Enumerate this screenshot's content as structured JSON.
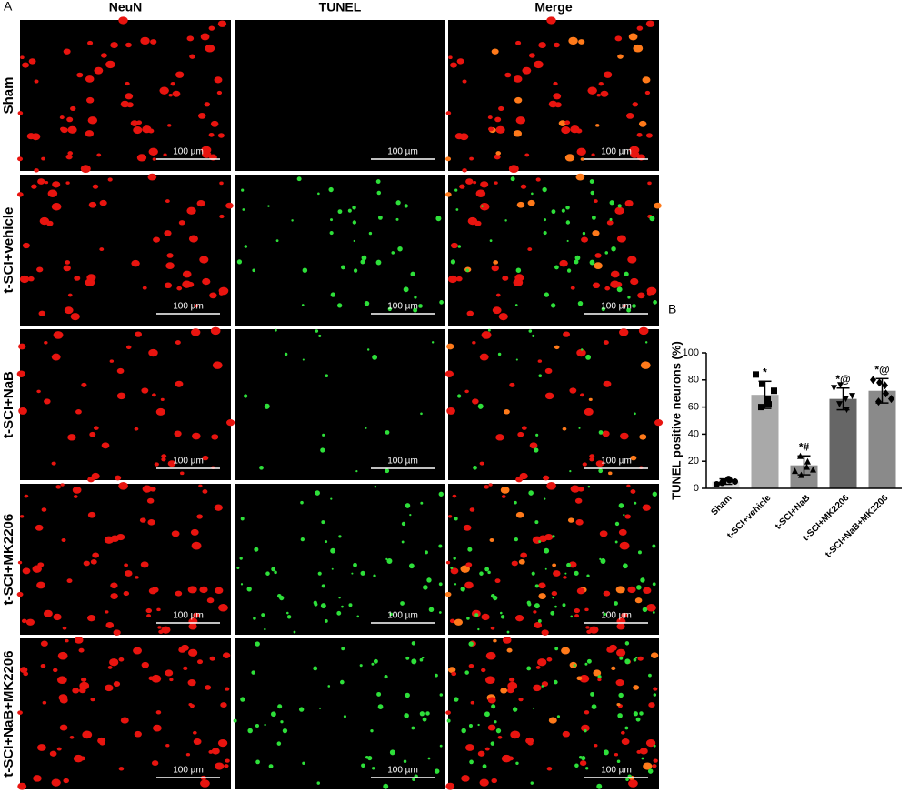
{
  "panel_a": {
    "label": "A",
    "columns": [
      "NeuN",
      "TUNEL",
      "Merge"
    ],
    "rows": [
      "Sham",
      "t-SCI+vehicle",
      "t-SCI+NaB",
      "t-SCI+MK2206",
      "t-SCI+NaB+MK2206"
    ],
    "scale_bar": "100 µm"
  },
  "chart_data": {
    "type": "bar",
    "label": "B",
    "y_label": "TUNEL positive neurons (%)",
    "categories": [
      "Sham",
      "t-SCI+vehicle",
      "t-SCI+NaB",
      "t-SCI+MK2206",
      "t-SCI+NaB+MK2206"
    ],
    "values": [
      5,
      69,
      17,
      66,
      72
    ],
    "errors": [
      2,
      10,
      7,
      8,
      9
    ],
    "colors": [
      "#dcdcdc",
      "#a9a9a9",
      "#8c8c8c",
      "#666666",
      "#8a8a8a"
    ],
    "markers": [
      "circle",
      "square",
      "triangle",
      "triangle-down",
      "diamond"
    ],
    "points": [
      [
        3,
        5,
        6,
        4,
        7,
        5
      ],
      [
        84,
        77,
        62,
        60,
        66,
        72
      ],
      [
        13,
        10,
        20,
        24,
        16,
        14
      ],
      [
        74,
        76,
        58,
        62,
        66,
        68
      ],
      [
        80,
        78,
        70,
        64,
        76,
        66
      ]
    ],
    "annotations": [
      "*",
      "*#",
      "*@",
      "*@"
    ],
    "annotation_categories": [
      1,
      2,
      3,
      4
    ],
    "ylim": [
      0,
      100
    ],
    "yticks": [
      0,
      20,
      40,
      60,
      80,
      100
    ]
  }
}
